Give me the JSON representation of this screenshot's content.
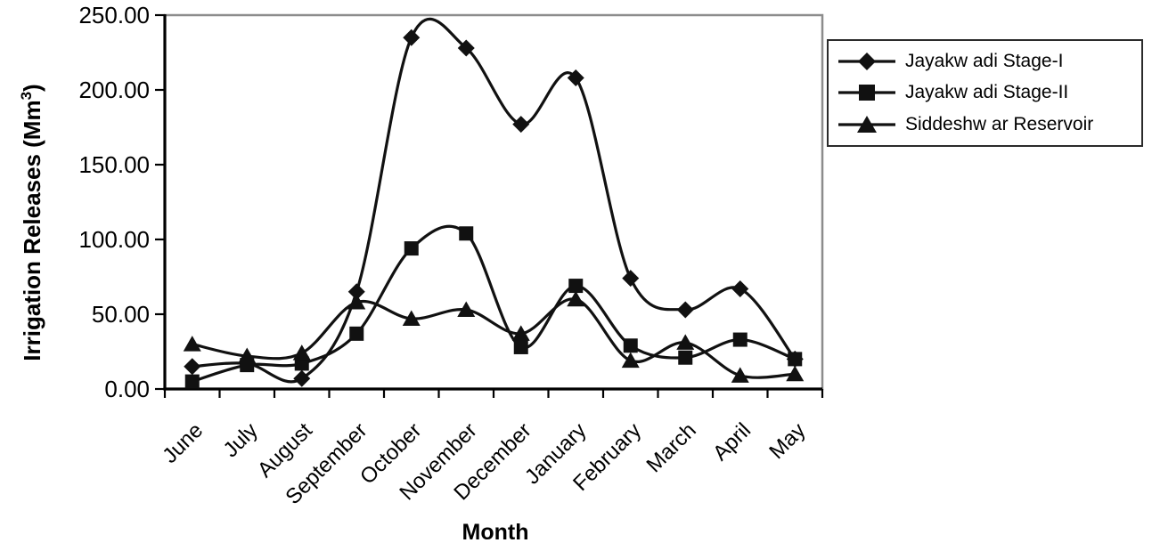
{
  "chart_data": {
    "type": "line",
    "title": "",
    "xlabel": "Month",
    "ylabel_prefix": "Irrigation Releases (Mm",
    "ylabel_sup": "3",
    "ylabel_suffix": ")",
    "ylim": [
      0,
      250
    ],
    "grid": "off",
    "smoothed_lines": true,
    "legend_position": "right",
    "line_color": "#111111",
    "plot_border_color": "#8c8c8c",
    "y_ticks": [
      {
        "value": 250,
        "label": "250.00"
      },
      {
        "value": 200,
        "label": "200.00"
      },
      {
        "value": 150,
        "label": "150.00"
      },
      {
        "value": 100,
        "label": "100.00"
      },
      {
        "value": 50,
        "label": "50.00"
      },
      {
        "value": 0,
        "label": "0.00"
      }
    ],
    "categories": [
      "June",
      "July",
      "August",
      "September",
      "October",
      "November",
      "December",
      "January",
      "February",
      "March",
      "April",
      "May"
    ],
    "series": [
      {
        "name": "Jayakw adi Stage-I",
        "marker": "diamond",
        "values": [
          15,
          17,
          7,
          65,
          235,
          228,
          177,
          208,
          74,
          53,
          67,
          20
        ]
      },
      {
        "name": "Jayakw adi Stage-II",
        "marker": "square",
        "values": [
          5,
          16,
          17,
          37,
          94,
          104,
          28,
          69,
          29,
          21,
          33,
          20
        ]
      },
      {
        "name": "Siddeshw ar Reservoir",
        "marker": "triangle",
        "values": [
          30,
          22,
          24,
          58,
          47,
          53,
          37,
          60,
          19,
          31,
          9,
          10
        ]
      }
    ]
  }
}
